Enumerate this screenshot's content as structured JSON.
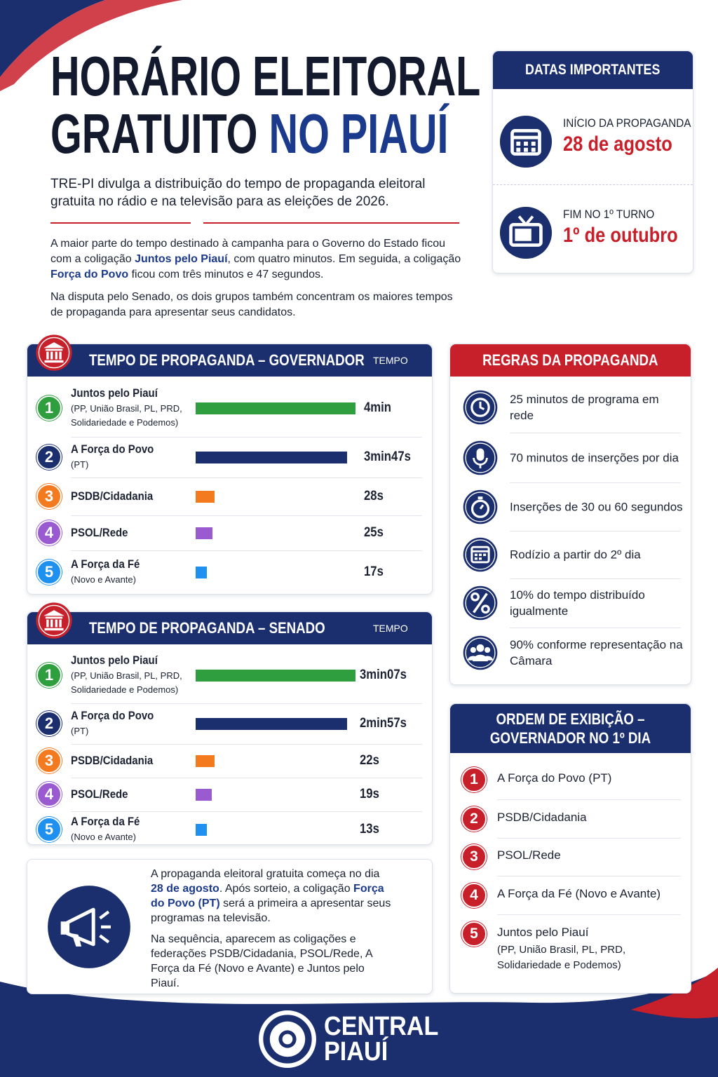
{
  "header": {
    "title_line1": "HORÁRIO ELEITORAL",
    "title_line2a": "GRATUITO",
    "title_line2b": "NO PIAUÍ",
    "subtitle": "TRE-PI divulga a distribuição do tempo de propaganda eleitoral gratuita no rádio e na televisão para as eleições de 2026."
  },
  "intro": {
    "paragraph1": [
      "A maior parte do tempo destinado à campanha para o Governo do Estado ficou com a coligação ",
      "Juntos pelo Piauí",
      ", com quatro minutos. Em seguida, a coligação ",
      "Força do Povo",
      " ficou com três minutos e 47 segundos."
    ],
    "paragraph2": [
      "Na disputa pelo Senado, os dois grupos também concentram os maiores tempos de propaganda para apresentar seus candidatos."
    ]
  },
  "dates": {
    "title": "DATAS IMPORTANTES",
    "items": [
      {
        "label": "INÍCIO DA PROPAGANDA",
        "date": "28 de agosto"
      },
      {
        "label": "FIM NO 1º TURNO",
        "date": "1º de outubro"
      }
    ]
  },
  "governor": {
    "title": "TEMPO DE PROPAGANDA – GOVERNADOR",
    "column": "TEMPO",
    "rows": [
      {
        "rank": 1,
        "name": "Juntos pelo Piauí",
        "detail": "(PP, União Brasil, PL, PRD, Solidariedade e Podemos)",
        "seconds": 240,
        "label": "4min",
        "color": "#2e9e3e"
      },
      {
        "rank": 2,
        "name": "A Força do Povo",
        "detail": "(PT)",
        "seconds": 227,
        "label": "3min47s",
        "color": "#1b2f6e"
      },
      {
        "rank": 3,
        "name": "PSDB/Cidadania",
        "seconds": 28,
        "label": "28s",
        "color": "#f47a1f"
      },
      {
        "rank": 4,
        "name": "PSOL/Rede",
        "seconds": 25,
        "label": "25s",
        "color": "#9a5bd1"
      },
      {
        "rank": 5,
        "name": "A Força da Fé",
        "detail": "(Novo e Avante)",
        "seconds": 17,
        "label": "17s",
        "color": "#1e90f0"
      }
    ]
  },
  "senate": {
    "title": "TEMPO DE PROPAGANDA – SENADO",
    "column": "TEMPO",
    "rows": [
      {
        "rank": 1,
        "name": "Juntos pelo Piauí",
        "detail": "(PP, União Brasil, PL, PRD, Solidariedade e Podemos)",
        "seconds": 187,
        "label": "3min07s",
        "color": "#2e9e3e"
      },
      {
        "rank": 2,
        "name": "A Força do Povo",
        "detail": "(PT)",
        "seconds": 177,
        "label": "2min57s",
        "color": "#1b2f6e"
      },
      {
        "rank": 3,
        "name": "PSDB/Cidadania",
        "seconds": 22,
        "label": "22s",
        "color": "#f47a1f"
      },
      {
        "rank": 4,
        "name": "PSOL/Rede",
        "seconds": 19,
        "label": "19s",
        "color": "#9a5bd1"
      },
      {
        "rank": 5,
        "name": "A Força da Fé",
        "detail": "(Novo e Avante)",
        "seconds": 13,
        "label": "13s",
        "color": "#1e90f0"
      }
    ]
  },
  "rules": {
    "title": "REGRAS DA PROPAGANDA",
    "items": [
      "25 minutos de programa em rede",
      "70 minutos de inserções por dia",
      "Inserções de 30 ou 60 segundos",
      "Rodízio a partir do 2º dia",
      "10% do tempo distribuído igualmente",
      "90% conforme representação na Câmara"
    ]
  },
  "order": {
    "title": "ORDEM DE EXIBIÇÃO – GOVERNADOR NO 1º DIA",
    "items": [
      {
        "rank": 1,
        "name": "A Força do Povo (PT)"
      },
      {
        "rank": 2,
        "name": "PSDB/Cidadania"
      },
      {
        "rank": 3,
        "name": "PSOL/Rede"
      },
      {
        "rank": 4,
        "name": "A Força da Fé (Novo e Avante)"
      },
      {
        "rank": 5,
        "name": "Juntos pelo Piauí",
        "detail": "(PP, União Brasil, PL, PRD, Solidariedade e Podemos)"
      }
    ]
  },
  "announcement": {
    "paragraph1": [
      "A propaganda eleitoral gratuita começa no dia ",
      "28 de agosto",
      ". Após sorteio, a coligação ",
      "Força do Povo (PT)",
      " será a primeira a apresentar seus programas na televisão."
    ],
    "paragraph2": [
      "Na sequência, aparecem as coligações e federações PSDB/Cidadania, PSOL/Rede, A Força da Fé (Novo e Avante) e Juntos pelo Piauí."
    ]
  },
  "footer": {
    "brand_line1": "CENTRAL",
    "brand_line2": "PIAUÍ"
  }
}
